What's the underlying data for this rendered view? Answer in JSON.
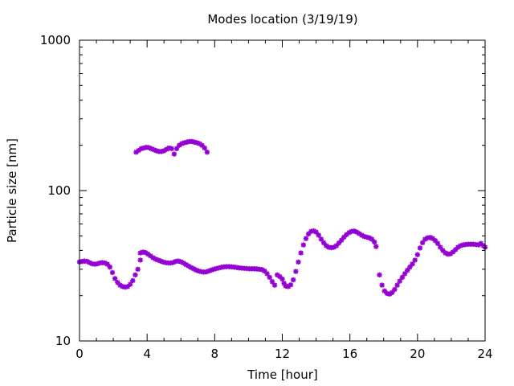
{
  "chart_data": {
    "type": "scatter",
    "title": "Modes location (3/19/19)",
    "xlabel": "Time [hour]",
    "ylabel": "Particle size [nm]",
    "xlim": [
      0,
      24
    ],
    "ylim": [
      10,
      1000
    ],
    "yscale": "log",
    "x_ticks": [
      0,
      4,
      8,
      12,
      16,
      20,
      24
    ],
    "x_tick_labels": [
      "0",
      "4",
      "8",
      "12",
      "16",
      "20",
      "24"
    ],
    "y_ticks": [
      10,
      100,
      1000
    ],
    "y_tick_labels": [
      "10",
      "100",
      "1000"
    ],
    "grid": false,
    "legend": "none",
    "marker_color": "#9400d3",
    "series": [
      {
        "points": [
          [
            0.0,
            33.5
          ],
          [
            0.15,
            33.8
          ],
          [
            0.3,
            34
          ],
          [
            0.45,
            33.8
          ],
          [
            0.6,
            33.2
          ],
          [
            0.75,
            32.6
          ],
          [
            0.9,
            32.4
          ],
          [
            1.05,
            32.6
          ],
          [
            1.2,
            33
          ],
          [
            1.35,
            33.2
          ],
          [
            1.5,
            33
          ],
          [
            1.65,
            32.4
          ],
          [
            1.8,
            31
          ],
          [
            1.95,
            28.5
          ],
          [
            2.1,
            26
          ],
          [
            2.25,
            24.5
          ],
          [
            2.4,
            23.5
          ],
          [
            2.55,
            23
          ],
          [
            2.7,
            22.8
          ],
          [
            2.85,
            23
          ],
          [
            3.0,
            23.8
          ],
          [
            3.15,
            25.2
          ],
          [
            3.3,
            27.5
          ],
          [
            3.45,
            30
          ],
          [
            3.6,
            34.5
          ],
          [
            3.6,
            38.5
          ],
          [
            3.75,
            39
          ],
          [
            3.9,
            38.7
          ],
          [
            4.05,
            37.8
          ],
          [
            4.2,
            36.8
          ],
          [
            4.35,
            35.8
          ],
          [
            4.5,
            35
          ],
          [
            4.65,
            34.5
          ],
          [
            4.8,
            34
          ],
          [
            4.95,
            33.5
          ],
          [
            5.1,
            33.2
          ],
          [
            5.25,
            33
          ],
          [
            5.4,
            33
          ],
          [
            5.55,
            33.3
          ],
          [
            5.7,
            33.8
          ],
          [
            5.85,
            34
          ],
          [
            6.0,
            33.6
          ],
          [
            6.15,
            33
          ],
          [
            6.3,
            32.2
          ],
          [
            6.45,
            31.5
          ],
          [
            6.6,
            30.8
          ],
          [
            6.75,
            30.2
          ],
          [
            6.9,
            29.6
          ],
          [
            7.05,
            29.2
          ],
          [
            7.2,
            28.9
          ],
          [
            7.35,
            28.7
          ],
          [
            7.5,
            28.8
          ],
          [
            7.65,
            29.2
          ],
          [
            7.8,
            29.6
          ],
          [
            7.95,
            30
          ],
          [
            8.1,
            30.3
          ],
          [
            8.25,
            30.6
          ],
          [
            8.4,
            30.9
          ],
          [
            8.55,
            31.1
          ],
          [
            8.7,
            31.2
          ],
          [
            8.85,
            31.2
          ],
          [
            9.0,
            31.1
          ],
          [
            9.15,
            31
          ],
          [
            9.3,
            30.8
          ],
          [
            9.45,
            30.6
          ],
          [
            9.6,
            30.5
          ],
          [
            9.75,
            30.4
          ],
          [
            9.9,
            30.3
          ],
          [
            10.05,
            30.2
          ],
          [
            10.2,
            30.2
          ],
          [
            10.35,
            30.2
          ],
          [
            10.5,
            30.1
          ],
          [
            10.65,
            30
          ],
          [
            10.8,
            29.8
          ],
          [
            10.95,
            29.2
          ],
          [
            11.1,
            28
          ],
          [
            11.25,
            26.5
          ],
          [
            11.4,
            24.8
          ],
          [
            11.55,
            23.5
          ],
          [
            11.7,
            27.5
          ],
          [
            11.85,
            26.8
          ],
          [
            12.0,
            25.8
          ],
          [
            12.1,
            24.2
          ],
          [
            12.2,
            23.2
          ],
          [
            12.35,
            23
          ],
          [
            12.5,
            23.6
          ],
          [
            12.65,
            25.5
          ],
          [
            12.8,
            29
          ],
          [
            12.95,
            33.5
          ],
          [
            13.1,
            38.5
          ],
          [
            13.25,
            43.5
          ],
          [
            13.4,
            48
          ],
          [
            13.55,
            51.5
          ],
          [
            13.7,
            53.5
          ],
          [
            13.85,
            54
          ],
          [
            14.0,
            53
          ],
          [
            14.15,
            50.5
          ],
          [
            14.3,
            47.5
          ],
          [
            14.45,
            45
          ],
          [
            14.6,
            43
          ],
          [
            14.75,
            42
          ],
          [
            14.9,
            41.7
          ],
          [
            15.05,
            42
          ],
          [
            15.2,
            43
          ],
          [
            15.35,
            44.8
          ],
          [
            15.5,
            46.8
          ],
          [
            15.65,
            49
          ],
          [
            15.8,
            51
          ],
          [
            15.95,
            52.5
          ],
          [
            16.1,
            53.5
          ],
          [
            16.25,
            53.8
          ],
          [
            16.4,
            53
          ],
          [
            16.55,
            51.8
          ],
          [
            16.7,
            50.5
          ],
          [
            16.85,
            49.5
          ],
          [
            17.0,
            49
          ],
          [
            17.15,
            48.5
          ],
          [
            17.3,
            47.5
          ],
          [
            17.45,
            45.5
          ],
          [
            17.55,
            42.5
          ],
          [
            17.75,
            27.5
          ],
          [
            17.9,
            23.5
          ],
          [
            18.05,
            21.5
          ],
          [
            18.2,
            20.7
          ],
          [
            18.35,
            20.5
          ],
          [
            18.5,
            21
          ],
          [
            18.65,
            22
          ],
          [
            18.8,
            23.5
          ],
          [
            18.95,
            25
          ],
          [
            19.1,
            26.5
          ],
          [
            19.25,
            28
          ],
          [
            19.4,
            29.5
          ],
          [
            19.55,
            31
          ],
          [
            19.7,
            32.5
          ],
          [
            19.85,
            34.5
          ],
          [
            20.0,
            37.5
          ],
          [
            20.15,
            41.5
          ],
          [
            20.3,
            45
          ],
          [
            20.45,
            47.5
          ],
          [
            20.6,
            48.5
          ],
          [
            20.75,
            48.8
          ],
          [
            20.9,
            48
          ],
          [
            21.05,
            46.5
          ],
          [
            21.2,
            44.5
          ],
          [
            21.35,
            42
          ],
          [
            21.5,
            40
          ],
          [
            21.65,
            38.5
          ],
          [
            21.8,
            37.8
          ],
          [
            21.95,
            38
          ],
          [
            22.1,
            39
          ],
          [
            22.25,
            40.5
          ],
          [
            22.4,
            42
          ],
          [
            22.55,
            43
          ],
          [
            22.7,
            43.5
          ],
          [
            22.85,
            43.8
          ],
          [
            23.0,
            44
          ],
          [
            23.15,
            44
          ],
          [
            23.3,
            44
          ],
          [
            23.45,
            43.8
          ],
          [
            23.6,
            43.5
          ],
          [
            23.75,
            44.5
          ],
          [
            23.9,
            43
          ],
          [
            24.0,
            42
          ],
          [
            3.35,
            180
          ],
          [
            3.5,
            185
          ],
          [
            3.65,
            190
          ],
          [
            3.8,
            192
          ],
          [
            3.95,
            194
          ],
          [
            4.1,
            193
          ],
          [
            4.25,
            190
          ],
          [
            4.4,
            187
          ],
          [
            4.55,
            184
          ],
          [
            4.7,
            182
          ],
          [
            4.85,
            182
          ],
          [
            5.0,
            184
          ],
          [
            5.15,
            188
          ],
          [
            5.3,
            192
          ],
          [
            5.45,
            190
          ],
          [
            5.6,
            175
          ],
          [
            5.75,
            190
          ],
          [
            5.9,
            200
          ],
          [
            6.05,
            205
          ],
          [
            6.2,
            208
          ],
          [
            6.35,
            210
          ],
          [
            6.5,
            212
          ],
          [
            6.65,
            212
          ],
          [
            6.8,
            210
          ],
          [
            6.95,
            208
          ],
          [
            7.1,
            205
          ],
          [
            7.25,
            200
          ],
          [
            7.4,
            192
          ],
          [
            7.55,
            180
          ]
        ]
      }
    ]
  }
}
